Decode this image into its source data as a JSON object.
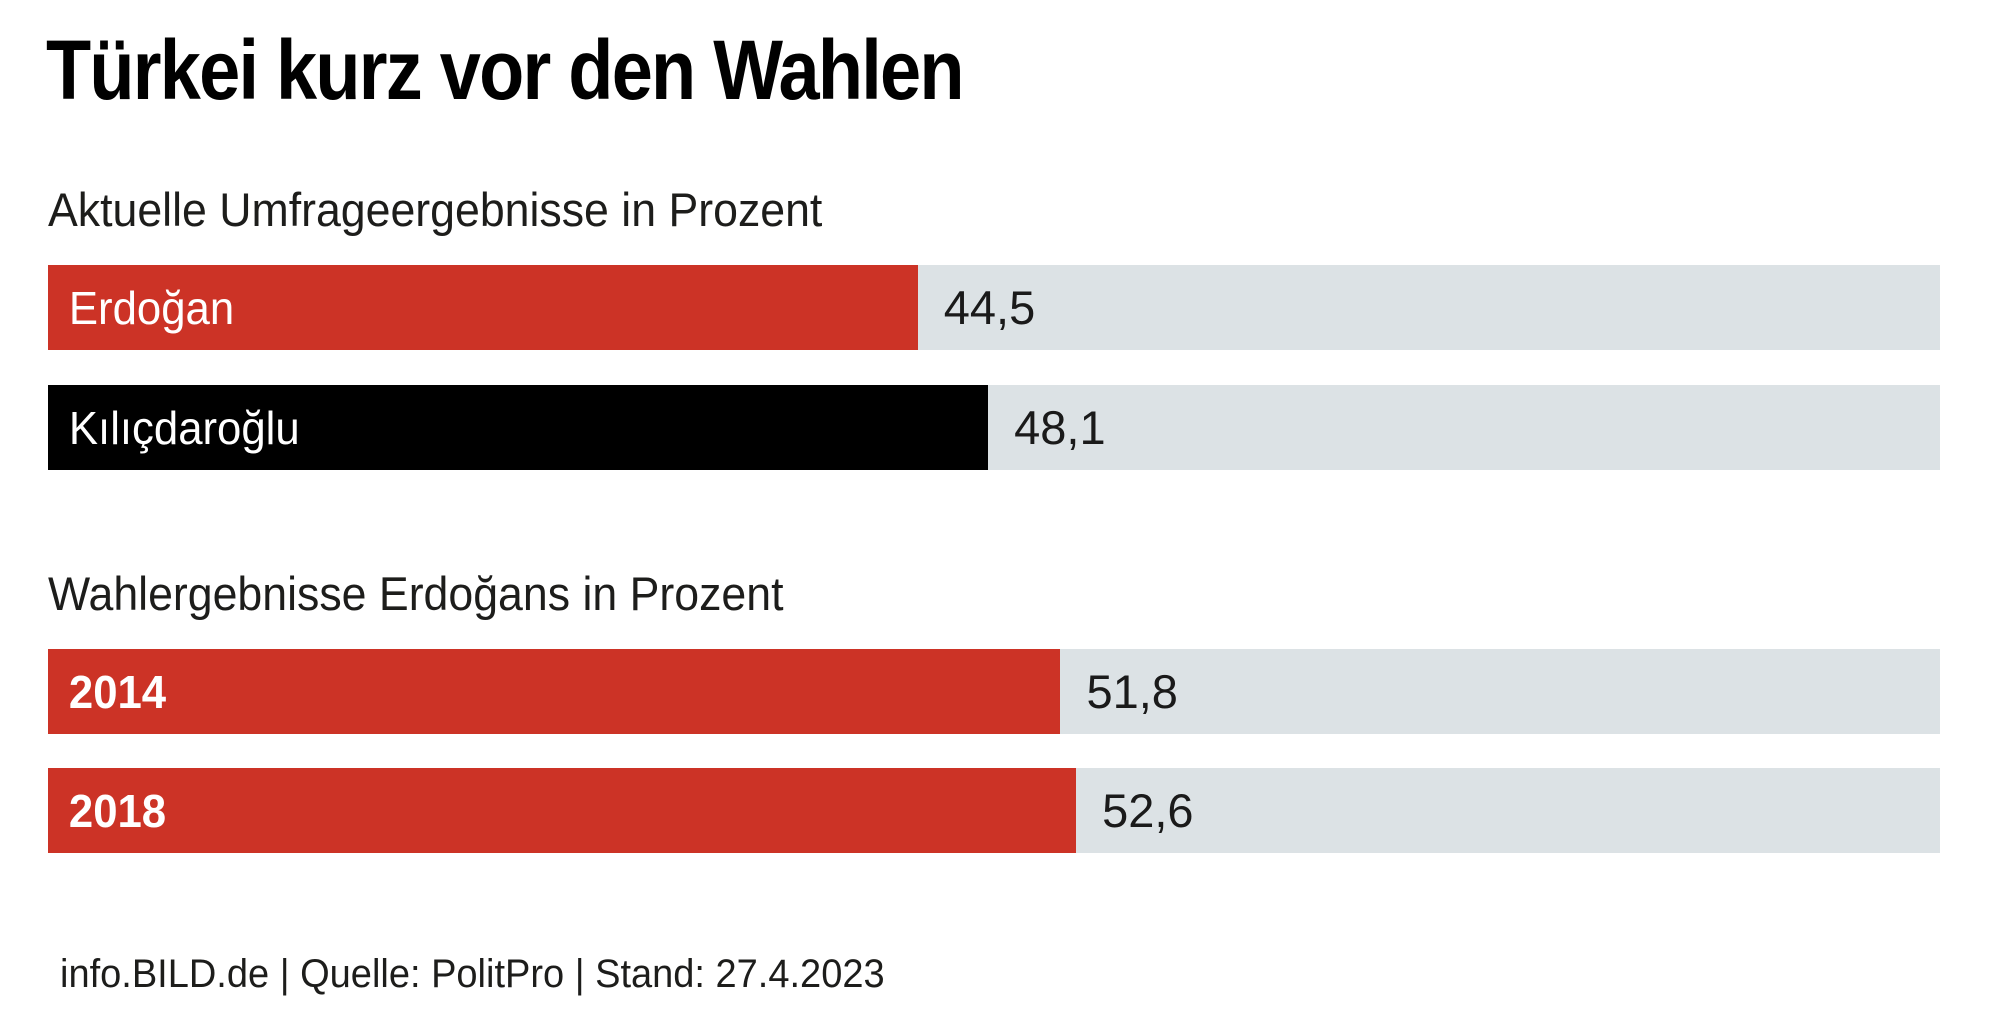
{
  "title": "Türkei kurz vor den Wahlen",
  "footer": {
    "credit": "info.BILD.de | Quelle: PolitPro | Stand: 27.4.2023"
  },
  "colors": {
    "accent_red": "#cc3326",
    "bar_black": "#000000",
    "track_gray": "#dce2e5",
    "text_black": "#1a1a1a",
    "background": "#ffffff"
  },
  "chart_data": [
    {
      "type": "bar",
      "orientation": "horizontal",
      "title": "Aktuelle Umfrageergebnisse in Prozent",
      "categories": [
        "Erdoğan",
        "Kılıçdaroğlu"
      ],
      "values": [
        44.5,
        48.1
      ],
      "value_labels": [
        "44,5",
        "48,1"
      ],
      "bar_colors": [
        "#cc3326",
        "#000000"
      ],
      "xlim": [
        0,
        96.8
      ],
      "unit": "percent",
      "grid": false,
      "legend": false
    },
    {
      "type": "bar",
      "orientation": "horizontal",
      "title": "Wahlergebnisse Erdoğans in Prozent",
      "categories": [
        "2014",
        "2018"
      ],
      "values": [
        51.8,
        52.6
      ],
      "value_labels": [
        "51,8",
        "52,6"
      ],
      "bar_colors": [
        "#cc3326",
        "#cc3326"
      ],
      "xlim": [
        0,
        96.8
      ],
      "unit": "percent",
      "grid": false,
      "legend": false
    }
  ]
}
